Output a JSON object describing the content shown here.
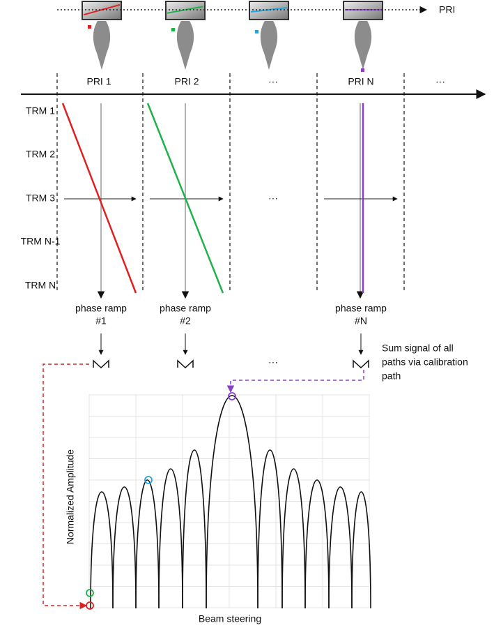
{
  "top_label": "PRI",
  "header_labels": [
    "PRI 1",
    "PRI 2",
    "···",
    "PRI N",
    "···"
  ],
  "row_labels": [
    "TRM 1",
    "TRM 2",
    "TRM 3",
    "TRM N-1",
    "TRM N"
  ],
  "middle_ellipsis": "···",
  "ramps": [
    {
      "label": "phase ramp",
      "id": "#1"
    },
    {
      "label": "phase ramp",
      "id": "#2"
    },
    {
      "label": "phase ramp",
      "id": "#N"
    }
  ],
  "sum_ellipsis": "···",
  "sum_note": [
    "Sum signal of all",
    "paths via calibration",
    "path"
  ],
  "plot": {
    "y_label": "Normalized Amplitude",
    "x_label": "Beam steering"
  }
}
